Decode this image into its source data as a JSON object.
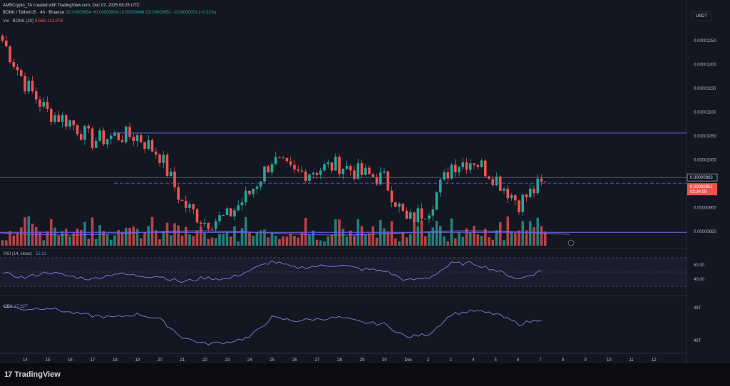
{
  "header": {
    "title": "AMBCrypto_TA created with TradingView.com, Dec 07, 2025 08:25 UTC"
  },
  "legend": {
    "symbol": "BONK / TetherUS · 4h · Binance",
    "ohlc": "O0.00000954 H0.00000954 L0.00000946 C0.00000951 −0.00000003 (−0.31%)",
    "volume": "Vol · BONK (20)",
    "volume_values": "9.56B  141.97B",
    "rsi": "RSI (14, close)",
    "rsi_value": "52.31",
    "obv": "OBV",
    "obv_value": "47.32T"
  },
  "quote_currency": "USDT",
  "brand": "TradingView",
  "colors": {
    "background": "#131722",
    "up": "#26a69a",
    "down": "#ef5350",
    "indicator": "#7e7fe0",
    "level": "#6b5bd6",
    "price_tag": "#ef5350"
  },
  "chart_data": [
    {
      "type": "candlestick",
      "title": "BONK / TetherUS · 4h · Binance",
      "x_ticks": [
        "14",
        "15",
        "16",
        "17",
        "18",
        "19",
        "20",
        "21",
        "22",
        "23",
        "24",
        "25",
        "26",
        "27",
        "28",
        "29",
        "30",
        "Dec",
        "2",
        "3",
        "4",
        "5",
        "6",
        "7",
        "8",
        "9",
        "10",
        "11",
        "12"
      ],
      "y_ticks": [
        "0.00001250",
        "0.00001200",
        "0.00001150",
        "0.00001100",
        "0.00001050",
        "0.00001000",
        "0.00000900",
        "0.00000850"
      ],
      "ylim": [
        8.2e-06,
        1.275e-05
      ],
      "levels": [
        {
          "name": "resistance",
          "value": 1.056e-05,
          "style": "solid"
        },
        {
          "name": "support",
          "value": 8.48e-06,
          "style": "solid"
        },
        {
          "name": "current",
          "value": 9.51e-06,
          "style": "dashed"
        }
      ],
      "crosshair_price": "0.00000963",
      "last_price": "0.00000951",
      "countdown": "03:34:08",
      "price_path_by_day": [
        {
          "day": "13",
          "close": 1.25e-05
        },
        {
          "day": "14",
          "close": 1.16e-05
        },
        {
          "day": "15",
          "close": 1.1e-05
        },
        {
          "day": "16",
          "close": 1.08e-05
        },
        {
          "day": "17",
          "close": 1.04e-05
        },
        {
          "day": "18",
          "close": 1.05e-05
        },
        {
          "day": "19",
          "close": 1.05e-05
        },
        {
          "day": "20",
          "close": 1.01e-05
        },
        {
          "day": "21",
          "close": 9.1e-06
        },
        {
          "day": "22",
          "close": 8.7e-06
        },
        {
          "day": "23",
          "close": 8.8e-06
        },
        {
          "day": "24",
          "close": 9.3e-06
        },
        {
          "day": "25",
          "close": 1e-05
        },
        {
          "day": "26",
          "close": 9.7e-06
        },
        {
          "day": "27",
          "close": 9.8e-06
        },
        {
          "day": "28",
          "close": 9.9e-06
        },
        {
          "day": "29",
          "close": 9.7e-06
        },
        {
          "day": "30",
          "close": 9.6e-06
        },
        {
          "day": "Dec",
          "close": 8.7e-06
        },
        {
          "day": "2",
          "close": 9e-06
        },
        {
          "day": "3",
          "close": 9.9e-06
        },
        {
          "day": "4",
          "close": 1e-05
        },
        {
          "day": "5",
          "close": 9.6e-06
        },
        {
          "day": "6",
          "close": 9.1e-06
        },
        {
          "day": "7",
          "close": 9.5e-06
        }
      ]
    },
    {
      "type": "line",
      "title": "RSI (14, close)",
      "y_ticks": [
        "60.00",
        "40.00"
      ],
      "ylim": [
        20,
        80
      ],
      "values_by_day": [
        {
          "day": "13",
          "value": 48
        },
        {
          "day": "14",
          "value": 42
        },
        {
          "day": "15",
          "value": 50
        },
        {
          "day": "16",
          "value": 44
        },
        {
          "day": "17",
          "value": 40
        },
        {
          "day": "18",
          "value": 48
        },
        {
          "day": "19",
          "value": 45
        },
        {
          "day": "20",
          "value": 44
        },
        {
          "day": "21",
          "value": 36
        },
        {
          "day": "22",
          "value": 42
        },
        {
          "day": "23",
          "value": 40
        },
        {
          "day": "24",
          "value": 52
        },
        {
          "day": "25",
          "value": 65
        },
        {
          "day": "26",
          "value": 56
        },
        {
          "day": "27",
          "value": 58
        },
        {
          "day": "28",
          "value": 60
        },
        {
          "day": "29",
          "value": 54
        },
        {
          "day": "30",
          "value": 52
        },
        {
          "day": "Dec",
          "value": 38
        },
        {
          "day": "2",
          "value": 42
        },
        {
          "day": "3",
          "value": 62
        },
        {
          "day": "4",
          "value": 62
        },
        {
          "day": "5",
          "value": 52
        },
        {
          "day": "6",
          "value": 40
        },
        {
          "day": "7",
          "value": 52
        }
      ]
    },
    {
      "type": "line",
      "title": "OBV",
      "y_ticks": [
        "48T",
        "46T"
      ],
      "ylim": [
        45.4,
        48.6
      ],
      "values_by_day": [
        {
          "day": "13",
          "value": 48.1
        },
        {
          "day": "14",
          "value": 47.9
        },
        {
          "day": "15",
          "value": 48.0
        },
        {
          "day": "16",
          "value": 47.7
        },
        {
          "day": "17",
          "value": 47.5
        },
        {
          "day": "18",
          "value": 47.4
        },
        {
          "day": "19",
          "value": 47.6
        },
        {
          "day": "20",
          "value": 47.3
        },
        {
          "day": "21",
          "value": 46.2
        },
        {
          "day": "22",
          "value": 45.8
        },
        {
          "day": "23",
          "value": 45.9
        },
        {
          "day": "24",
          "value": 46.2
        },
        {
          "day": "25",
          "value": 47.4
        },
        {
          "day": "26",
          "value": 47.2
        },
        {
          "day": "27",
          "value": 47.3
        },
        {
          "day": "28",
          "value": 47.4
        },
        {
          "day": "29",
          "value": 47.1
        },
        {
          "day": "30",
          "value": 47.0
        },
        {
          "day": "Dec",
          "value": 46.2
        },
        {
          "day": "2",
          "value": 46.4
        },
        {
          "day": "3",
          "value": 47.6
        },
        {
          "day": "4",
          "value": 47.8
        },
        {
          "day": "5",
          "value": 47.6
        },
        {
          "day": "6",
          "value": 47.0
        },
        {
          "day": "7",
          "value": 47.3
        }
      ]
    }
  ]
}
